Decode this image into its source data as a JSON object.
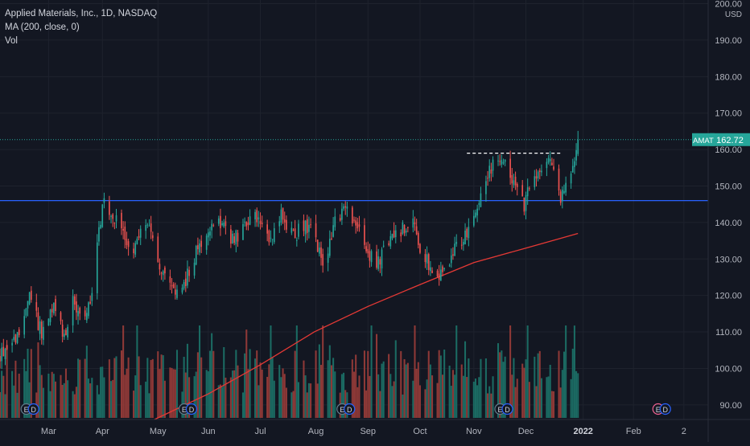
{
  "legend": {
    "symbol_line": "Applied Materials, Inc., 1D, NASDAQ",
    "ma_line": "MA (200, close, 0)",
    "vol_line": "Vol"
  },
  "colors": {
    "background": "#131722",
    "grid": "#1e222d",
    "up": "#26a69a",
    "down": "#ef5350",
    "up_volume": "#1b6b63",
    "down_volume": "#8f3937",
    "ma": "#e53935",
    "hline": "#2962ff",
    "resistance": "#ffffff",
    "price_tag": "#26a69a",
    "axis_text": "#b2b5be"
  },
  "chart_data": {
    "type": "candlestick",
    "symbol": "AMAT",
    "title": "Applied Materials, Inc., 1D, NASDAQ",
    "currency": "USD",
    "last_price": 162.72,
    "last_price_label": "162.72",
    "y_ticks": [
      "90.00",
      "100.00",
      "110.00",
      "120.00",
      "130.00",
      "140.00",
      "150.00",
      "160.00",
      "170.00",
      "180.00",
      "190.00",
      "200.00"
    ],
    "y_tick_values": [
      90,
      100,
      110,
      120,
      130,
      140,
      150,
      160,
      170,
      180,
      190,
      200
    ],
    "ylim": [
      86,
      201
    ],
    "x_ticks": [
      "Mar",
      "Apr",
      "May",
      "Jun",
      "Jul",
      "Aug",
      "Sep",
      "Oct",
      "Nov",
      "Dec",
      "2022",
      "Feb",
      "2"
    ],
    "x_tick_dates": [
      "2021-03-01",
      "2021-04-01",
      "2021-05-03",
      "2021-06-01",
      "2021-07-01",
      "2021-08-02",
      "2021-09-01",
      "2021-10-01",
      "2021-11-01",
      "2021-12-01",
      "2022-01-03",
      "2022-02-01",
      "2022-03-02"
    ],
    "xlim": [
      "2021-02-01",
      "2022-03-16"
    ],
    "horizontal_line": 146,
    "resistance_line": 159,
    "resistance_range": [
      "2021-10-28",
      "2021-12-22"
    ],
    "anchors": [
      [
        "2021-02-01",
        104
      ],
      [
        "2021-02-10",
        108
      ],
      [
        "2021-02-18",
        119
      ],
      [
        "2021-02-25",
        110
      ],
      [
        "2021-03-04",
        116
      ],
      [
        "2021-03-10",
        109
      ],
      [
        "2021-03-15",
        118
      ],
      [
        "2021-03-22",
        113
      ],
      [
        "2021-03-26",
        120
      ],
      [
        "2021-04-01",
        145
      ],
      [
        "2021-04-06",
        143
      ],
      [
        "2021-04-12",
        137
      ],
      [
        "2021-04-19",
        132
      ],
      [
        "2021-04-26",
        141
      ],
      [
        "2021-04-30",
        134
      ],
      [
        "2021-05-06",
        126
      ],
      [
        "2021-05-12",
        120
      ],
      [
        "2021-05-19",
        124
      ],
      [
        "2021-05-25",
        132
      ],
      [
        "2021-06-01",
        139
      ],
      [
        "2021-06-08",
        140
      ],
      [
        "2021-06-15",
        135
      ],
      [
        "2021-06-22",
        139
      ],
      [
        "2021-06-28",
        141
      ],
      [
        "2021-07-06",
        135
      ],
      [
        "2021-07-13",
        142
      ],
      [
        "2021-07-20",
        136
      ],
      [
        "2021-07-27",
        140
      ],
      [
        "2021-08-03",
        134
      ],
      [
        "2021-08-06",
        127
      ],
      [
        "2021-08-12",
        139
      ],
      [
        "2021-08-18",
        144
      ],
      [
        "2021-08-25",
        140
      ],
      [
        "2021-08-31",
        132
      ],
      [
        "2021-09-07",
        129
      ],
      [
        "2021-09-13",
        135
      ],
      [
        "2021-09-20",
        138
      ],
      [
        "2021-09-27",
        140
      ],
      [
        "2021-10-01",
        133
      ],
      [
        "2021-10-06",
        129
      ],
      [
        "2021-10-12",
        125
      ],
      [
        "2021-10-18",
        130
      ],
      [
        "2021-10-25",
        135
      ],
      [
        "2021-10-29",
        137
      ],
      [
        "2021-11-03",
        144
      ],
      [
        "2021-11-08",
        153
      ],
      [
        "2021-11-15",
        157
      ],
      [
        "2021-11-19",
        158
      ],
      [
        "2021-11-24",
        150
      ],
      [
        "2021-11-30",
        145
      ],
      [
        "2021-12-03",
        149
      ],
      [
        "2021-12-09",
        154
      ],
      [
        "2021-12-14",
        157
      ],
      [
        "2021-12-17",
        153
      ],
      [
        "2021-12-21",
        147
      ],
      [
        "2021-12-27",
        152
      ],
      [
        "2021-12-31",
        162.72
      ]
    ],
    "ma_series": [
      [
        "2021-05-01",
        86
      ],
      [
        "2021-06-01",
        93
      ],
      [
        "2021-07-01",
        101
      ],
      [
        "2021-08-01",
        110
      ],
      [
        "2021-09-01",
        117
      ],
      [
        "2021-10-01",
        123
      ],
      [
        "2021-11-01",
        129
      ],
      [
        "2021-12-01",
        133
      ],
      [
        "2021-12-31",
        137
      ]
    ],
    "volume_series_name": "Vol",
    "earnings_markers": [
      "2021-02-18",
      "2021-05-20",
      "2021-08-19",
      "2021-11-18",
      "2022-02-17"
    ],
    "earnings_label": "E",
    "dividend_label": "D"
  }
}
